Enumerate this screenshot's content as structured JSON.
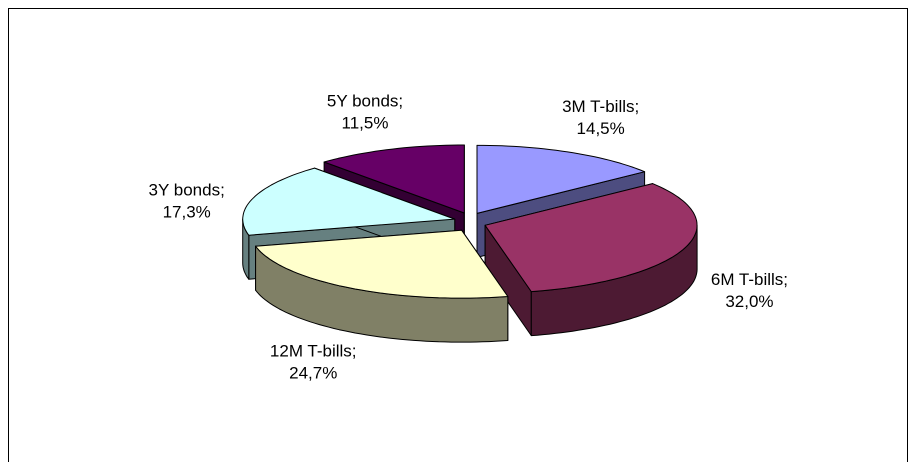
{
  "chart_data": {
    "type": "pie3d",
    "categories": [
      "3M T-bills;",
      "6M T-bills;",
      "12M T-bills;",
      "3Y bonds;",
      "5Y bonds;"
    ],
    "values": [
      14.5,
      32.0,
      24.7,
      17.3,
      11.5
    ],
    "value_labels": [
      "14,5%",
      "32,0%",
      "24,7%",
      "17,3%",
      "11,5%"
    ],
    "colors": [
      "#9999ff",
      "#993366",
      "#ffffcc",
      "#ccffff",
      "#660066"
    ]
  }
}
